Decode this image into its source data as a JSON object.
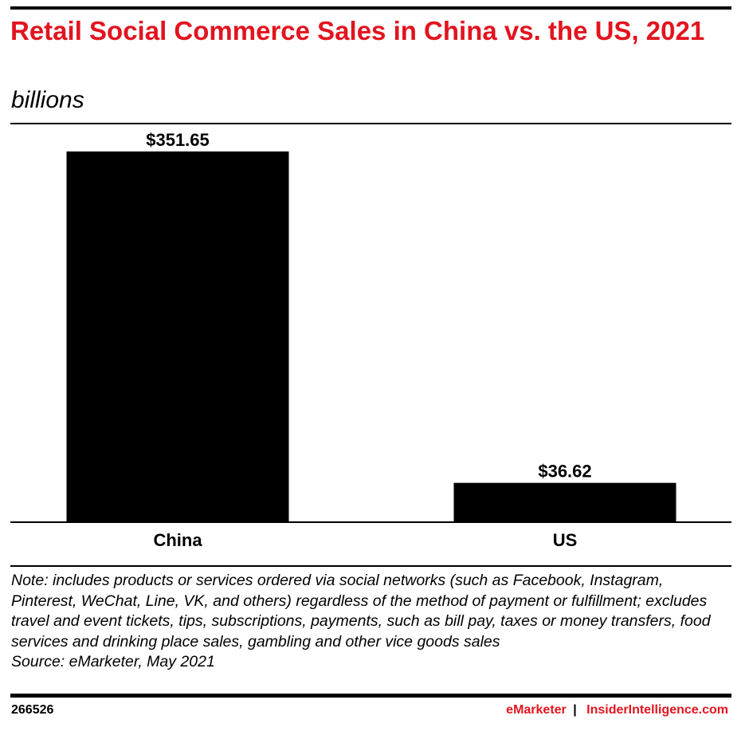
{
  "header": {
    "title": "Retail Social Commerce Sales in China vs. the US, 2021",
    "subtitle": "billions"
  },
  "chart_data": {
    "type": "bar",
    "categories": [
      "China",
      "US"
    ],
    "values": [
      351.65,
      36.62
    ],
    "value_labels": [
      "$351.65",
      "$36.62"
    ],
    "title": "Retail Social Commerce Sales in China vs. the US, 2021",
    "ylabel": "billions",
    "xlabel": "",
    "ylim": [
      0,
      351.65
    ],
    "grid": false,
    "legend": "none",
    "bar_color": "#000000"
  },
  "footer": {
    "note": "Note: includes products or services ordered via social networks (such as Facebook, Instagram, Pinterest, WeChat, Line, VK, and others) regardless of the method of payment or fulfillment; excludes travel and event tickets, tips, subscriptions, payments, such as bill pay, taxes or money transfers, food services and drinking place sales, gambling and other vice goods sales",
    "source": "Source: eMarketer, May 2021",
    "chart_id": "266526",
    "brand_primary": "eMarketer",
    "brand_separator": "|",
    "brand_secondary": "InsiderIntelligence.com"
  },
  "colors": {
    "accent": "#e2141f",
    "ink": "#000000"
  }
}
